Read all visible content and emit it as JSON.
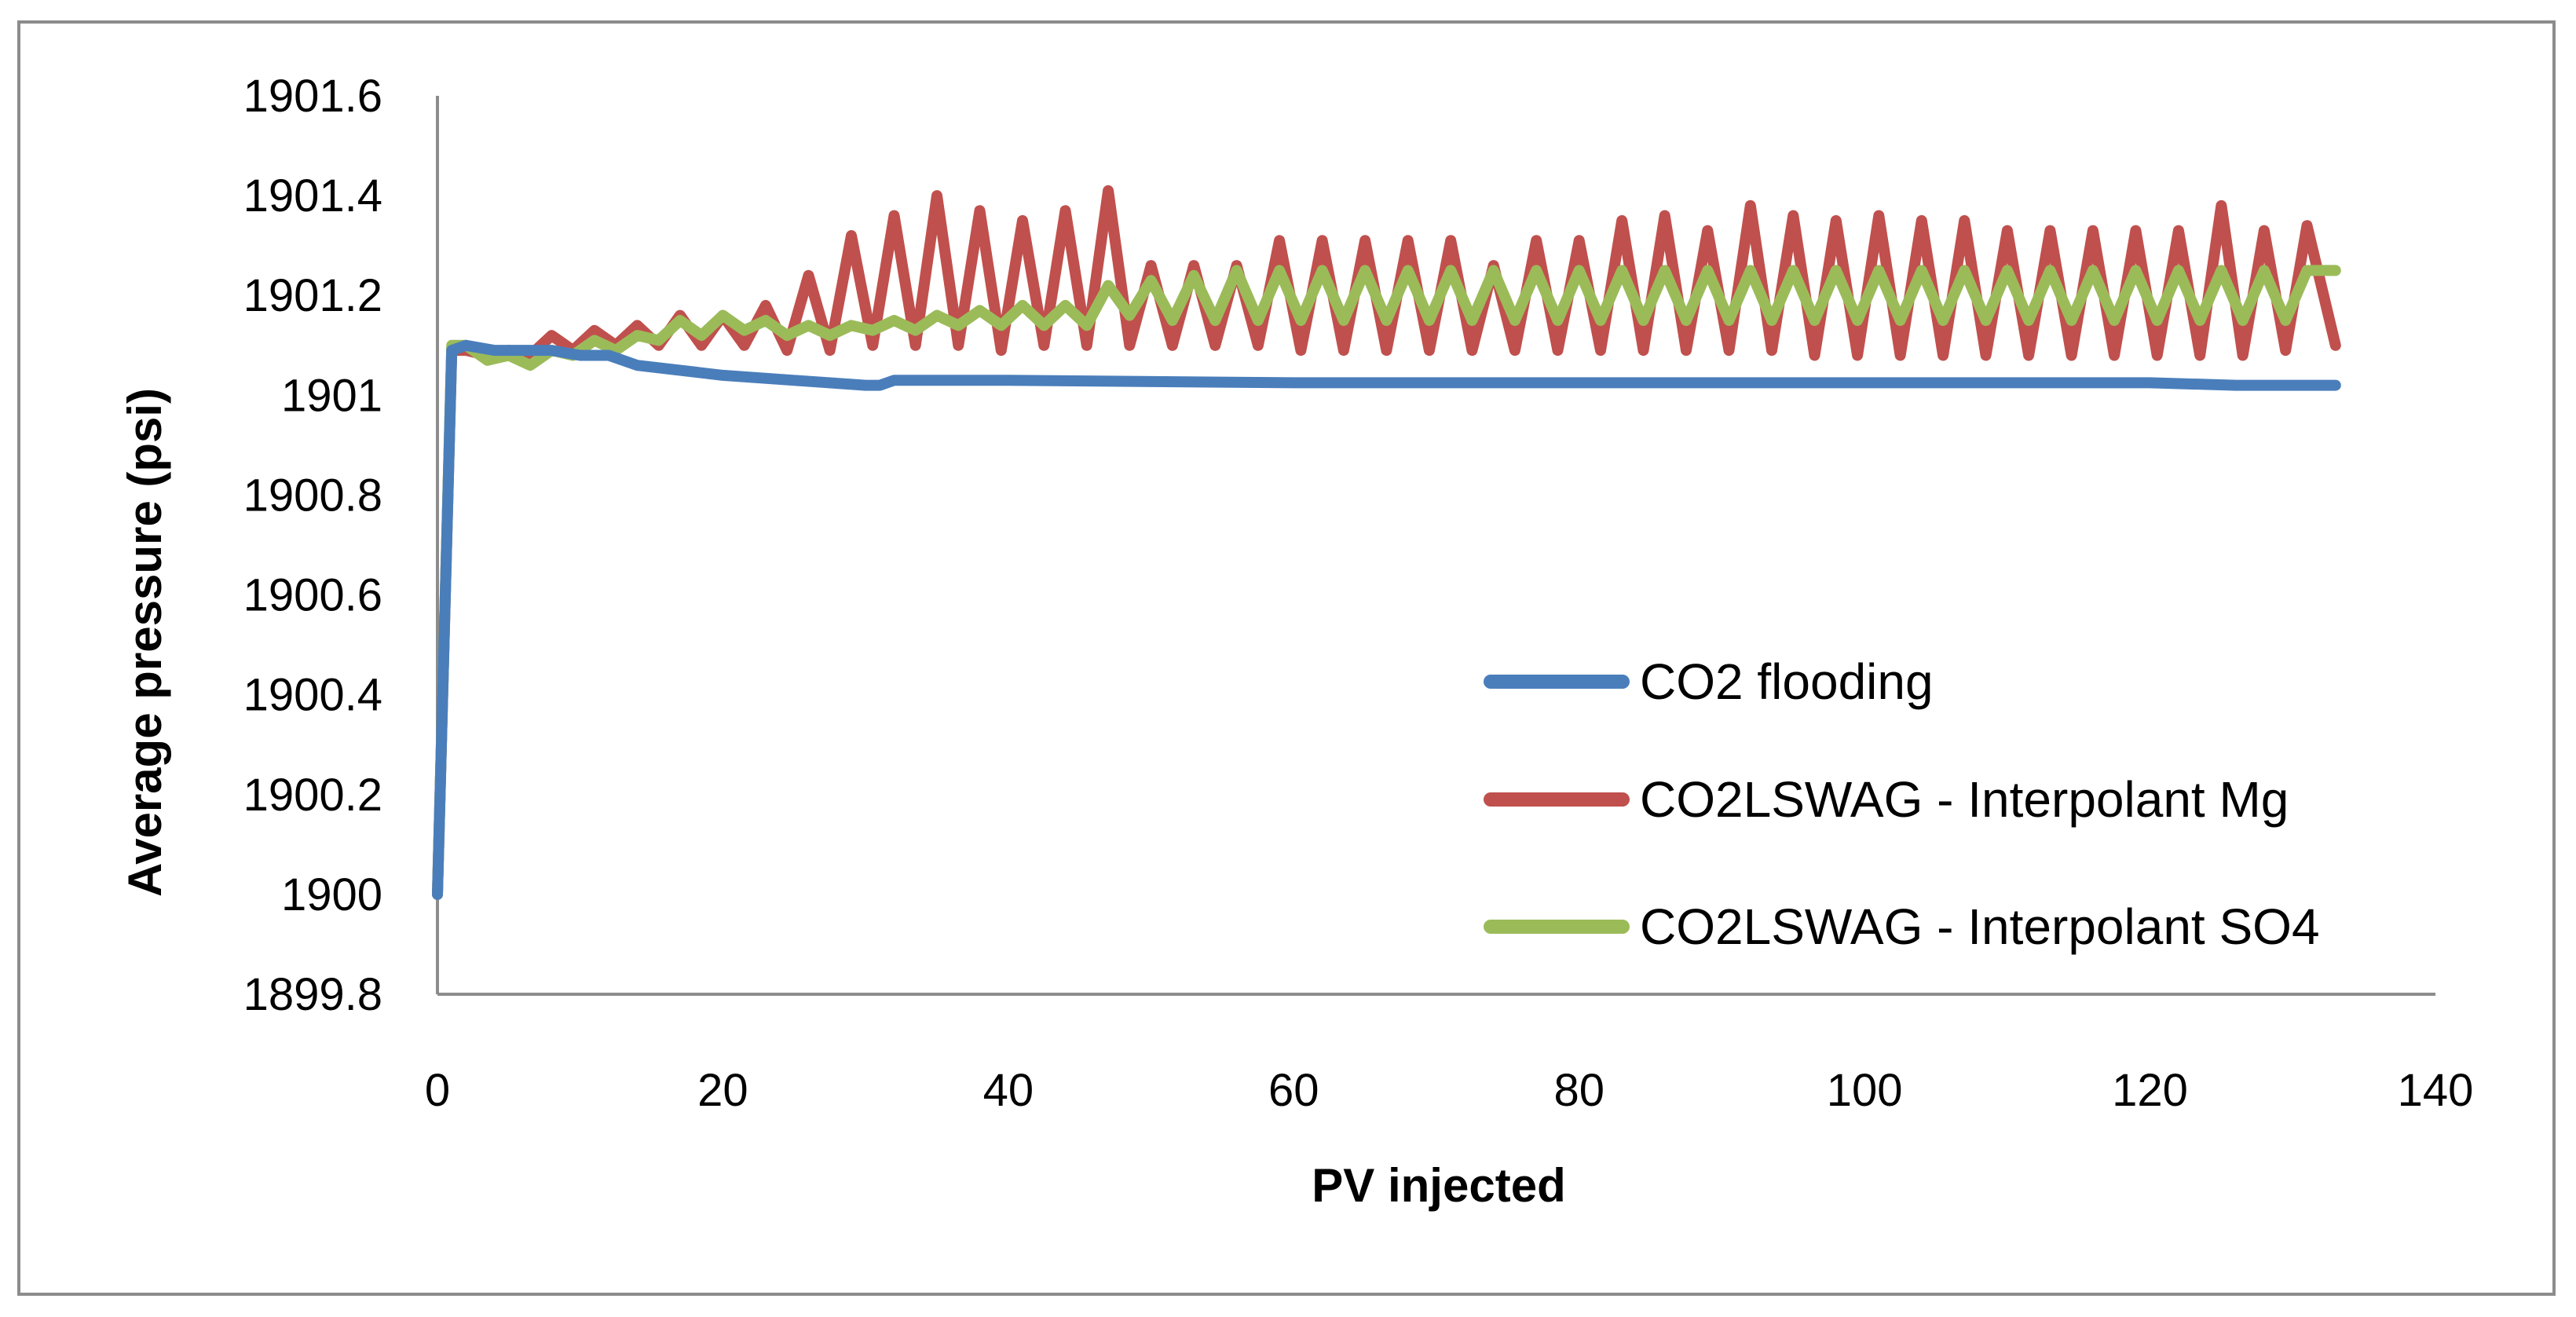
{
  "chart_data": {
    "type": "line",
    "title": "",
    "xlabel": "PV injected",
    "ylabel": "Average pressure (psi)",
    "xlim": [
      0,
      140
    ],
    "ylim": [
      1899.8,
      1901.6
    ],
    "x_ticks": [
      0,
      20,
      40,
      60,
      80,
      100,
      120,
      140
    ],
    "x_tick_labels": [
      "0",
      "20",
      "40",
      "60",
      "80",
      "100",
      "120",
      "140"
    ],
    "y_ticks": [
      1899.8,
      1900,
      1900.2,
      1900.4,
      1900.6,
      1900.8,
      1901,
      1901.2,
      1901.4,
      1901.6
    ],
    "y_tick_labels": [
      "1899.8",
      "1900",
      "1900.2",
      "1900.4",
      "1900.6",
      "1900.8",
      "1901",
      "1901.2",
      "1901.4",
      "1901.6"
    ],
    "grid": false,
    "legend_position": "right",
    "series": [
      {
        "name": "CO2 flooding",
        "color": "#4a7ebb",
        "x": [
          0,
          1,
          2,
          4,
          6,
          8,
          10,
          12,
          14,
          20,
          25,
          30,
          31,
          32,
          33,
          40,
          60,
          80,
          100,
          120,
          126,
          127,
          128,
          133
        ],
        "y": [
          1900,
          1901.09,
          1901.1,
          1901.09,
          1901.09,
          1901.09,
          1901.08,
          1901.08,
          1901.06,
          1901.04,
          1901.03,
          1901.02,
          1901.02,
          1901.03,
          1901.03,
          1901.03,
          1901.025,
          1901.025,
          1901.025,
          1901.025,
          1901.02,
          1901.02,
          1901.02,
          1901.02
        ]
      },
      {
        "name": "CO2LSWAG - Interpolant Mg",
        "color": "#c0504d",
        "x": [
          0,
          1,
          2,
          3.5,
          5,
          6.5,
          8,
          9.5,
          11,
          12.5,
          14,
          15.5,
          17,
          18.5,
          20,
          21.5,
          23,
          24.5,
          26,
          27.5,
          29,
          30.5,
          32,
          33.5,
          35,
          36.5,
          38,
          39.5,
          41,
          42.5,
          44,
          45.5,
          47,
          48.5,
          50,
          51.5,
          53,
          54.5,
          56,
          57.5,
          59,
          60.5,
          62,
          63.5,
          65,
          66.5,
          68,
          69.5,
          71,
          72.5,
          74,
          75.5,
          77,
          78.5,
          80,
          81.5,
          83,
          84.5,
          86,
          87.5,
          89,
          90.5,
          92,
          93.5,
          95,
          96.5,
          98,
          99.5,
          101,
          102.5,
          104,
          105.5,
          107,
          108.5,
          110,
          111.5,
          113,
          114.5,
          116,
          117.5,
          119,
          120.5,
          122,
          123.5,
          125,
          126.5,
          128,
          129.5,
          131,
          133
        ],
        "y": [
          1900,
          1901.09,
          1901.09,
          1901.08,
          1901.09,
          1901.08,
          1901.12,
          1901.09,
          1901.13,
          1901.1,
          1901.14,
          1901.1,
          1901.16,
          1901.1,
          1901.16,
          1901.1,
          1901.18,
          1901.09,
          1901.24,
          1901.09,
          1901.32,
          1901.1,
          1901.36,
          1901.1,
          1901.4,
          1901.1,
          1901.37,
          1901.09,
          1901.35,
          1901.1,
          1901.37,
          1901.1,
          1901.41,
          1901.1,
          1901.26,
          1901.1,
          1901.26,
          1901.1,
          1901.26,
          1901.1,
          1901.31,
          1901.09,
          1901.31,
          1901.09,
          1901.31,
          1901.09,
          1901.31,
          1901.09,
          1901.31,
          1901.09,
          1901.26,
          1901.09,
          1901.31,
          1901.09,
          1901.31,
          1901.09,
          1901.35,
          1901.09,
          1901.36,
          1901.09,
          1901.33,
          1901.09,
          1901.38,
          1901.09,
          1901.36,
          1901.08,
          1901.35,
          1901.08,
          1901.36,
          1901.08,
          1901.35,
          1901.08,
          1901.35,
          1901.08,
          1901.33,
          1901.08,
          1901.33,
          1901.08,
          1901.33,
          1901.08,
          1901.33,
          1901.08,
          1901.33,
          1901.08,
          1901.38,
          1901.08,
          1901.33,
          1901.09,
          1901.34,
          1901.1
        ]
      },
      {
        "name": "CO2LSWAG - Interpolant SO4",
        "color": "#9bbb59",
        "x": [
          0,
          1,
          2,
          3.5,
          5,
          6.5,
          8,
          9.5,
          11,
          12.5,
          14,
          15.5,
          17,
          18.5,
          20,
          21.5,
          23,
          24.5,
          26,
          27.5,
          29,
          30.5,
          32,
          33.5,
          35,
          36.5,
          38,
          39.5,
          41,
          42.5,
          44,
          45.5,
          47,
          48.5,
          50,
          51.5,
          53,
          54.5,
          56,
          57.5,
          59,
          60.5,
          62,
          63.5,
          65,
          66.5,
          68,
          69.5,
          71,
          72.5,
          74,
          75.5,
          77,
          78.5,
          80,
          81.5,
          83,
          84.5,
          86,
          87.5,
          89,
          90.5,
          92,
          93.5,
          95,
          96.5,
          98,
          99.5,
          101,
          102.5,
          104,
          105.5,
          107,
          108.5,
          110,
          111.5,
          113,
          114.5,
          116,
          117.5,
          119,
          120.5,
          122,
          123.5,
          125,
          126.5,
          128,
          129.5,
          131,
          133
        ],
        "y": [
          1900,
          1901.1,
          1901.1,
          1901.07,
          1901.08,
          1901.06,
          1901.09,
          1901.08,
          1901.11,
          1901.09,
          1901.12,
          1901.11,
          1901.15,
          1901.12,
          1901.16,
          1901.13,
          1901.15,
          1901.12,
          1901.14,
          1901.12,
          1901.14,
          1901.13,
          1901.15,
          1901.13,
          1901.16,
          1901.14,
          1901.17,
          1901.14,
          1901.18,
          1901.14,
          1901.18,
          1901.14,
          1901.22,
          1901.16,
          1901.23,
          1901.15,
          1901.24,
          1901.15,
          1901.25,
          1901.15,
          1901.25,
          1901.15,
          1901.25,
          1901.15,
          1901.25,
          1901.15,
          1901.25,
          1901.15,
          1901.25,
          1901.15,
          1901.25,
          1901.15,
          1901.25,
          1901.15,
          1901.25,
          1901.15,
          1901.25,
          1901.15,
          1901.25,
          1901.15,
          1901.25,
          1901.15,
          1901.25,
          1901.15,
          1901.25,
          1901.15,
          1901.25,
          1901.15,
          1901.25,
          1901.15,
          1901.25,
          1901.15,
          1901.25,
          1901.15,
          1901.25,
          1901.15,
          1901.25,
          1901.15,
          1901.25,
          1901.15,
          1901.25,
          1901.15,
          1901.25,
          1901.15,
          1901.25,
          1901.15,
          1901.25,
          1901.15,
          1901.25,
          1901.25
        ]
      }
    ]
  }
}
